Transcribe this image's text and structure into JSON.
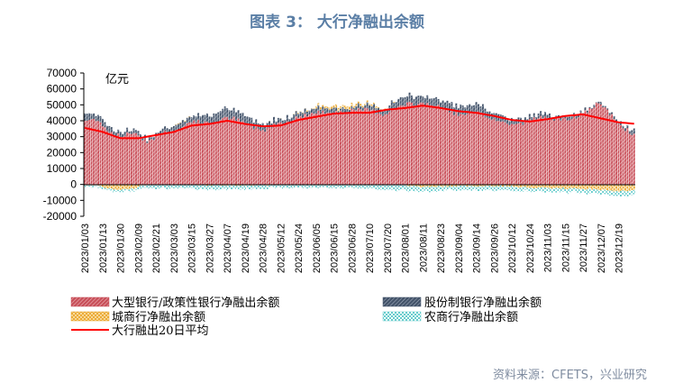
{
  "figure": {
    "title": "图表 3：  大行净融出余额",
    "source": "资料来源：CFETS，兴业研究"
  },
  "chart_data": {
    "type": "bar",
    "stacked": true,
    "unit_label": "亿元",
    "ylim": [
      -20000,
      70000
    ],
    "y_ticks": [
      70000,
      60000,
      50000,
      40000,
      30000,
      20000,
      10000,
      0,
      -10000,
      -20000
    ],
    "x_tick_labels": [
      "2023/01/03",
      "2023/01/13",
      "2023/01/30",
      "2023/02/09",
      "2023/02/21",
      "2023/03/03",
      "2023/03/15",
      "2023/03/27",
      "2023/04/07",
      "2023/04/19",
      "2023/04/28",
      "2023/05/12",
      "2023/05/24",
      "2023/06/05",
      "2023/06/15",
      "2023/06/28",
      "2023/07/10",
      "2023/07/20",
      "2023/08/01",
      "2023/08/11",
      "2023/08/23",
      "2023/09/04",
      "2023/09/14",
      "2023/09/26",
      "2023/10/12",
      "2023/10/24",
      "2023/11/03",
      "2023/11/15",
      "2023/11/27",
      "2023/12/07",
      "2023/12/19"
    ],
    "points_per_tick": 8,
    "grid": false,
    "legend_position": "bottom",
    "colors": {
      "big_banks": "#c8505a",
      "joint_stock": "#44546a",
      "city_commercial": "#f0b040",
      "rural_commercial": "#66cccc",
      "avg_line": "#ff0000"
    },
    "legend": [
      {
        "key": "big_banks",
        "label": "大型银行/政策性银行净融出余额"
      },
      {
        "key": "joint_stock",
        "label": "股份制银行净融出余额"
      },
      {
        "key": "city_commercial",
        "label": "城商行净融出余额"
      },
      {
        "key": "rural_commercial",
        "label": "农商行净融出余额"
      },
      {
        "key": "avg_line",
        "label": "大行融出20日平均"
      }
    ],
    "avg_anchors": [
      [
        0,
        35500
      ],
      [
        8,
        33000
      ],
      [
        16,
        29000
      ],
      [
        24,
        29000
      ],
      [
        32,
        31000
      ],
      [
        40,
        33000
      ],
      [
        48,
        37000
      ],
      [
        56,
        38000
      ],
      [
        64,
        40000
      ],
      [
        72,
        38000
      ],
      [
        80,
        36500
      ],
      [
        88,
        37000
      ],
      [
        96,
        40500
      ],
      [
        104,
        42500
      ],
      [
        112,
        44500
      ],
      [
        120,
        45000
      ],
      [
        128,
        45000
      ],
      [
        136,
        47000
      ],
      [
        144,
        48000
      ],
      [
        152,
        49500
      ],
      [
        160,
        48000
      ],
      [
        168,
        46000
      ],
      [
        176,
        45000
      ],
      [
        184,
        43000
      ],
      [
        192,
        40500
      ],
      [
        200,
        39500
      ],
      [
        208,
        41000
      ],
      [
        216,
        43000
      ],
      [
        224,
        44000
      ],
      [
        232,
        41500
      ],
      [
        240,
        39000
      ],
      [
        248,
        38000
      ],
      [
        256,
        37500
      ],
      [
        264,
        38000
      ],
      [
        272,
        43000
      ],
      [
        280,
        45000
      ],
      [
        288,
        45500
      ],
      [
        296,
        46000
      ],
      [
        304,
        48500
      ],
      [
        312,
        50000
      ],
      [
        320,
        51000
      ],
      [
        328,
        51500
      ],
      [
        336,
        51500
      ],
      [
        344,
        50000
      ]
    ],
    "big_anchors": [
      [
        0,
        40000
      ],
      [
        6,
        41000
      ],
      [
        10,
        34000
      ],
      [
        16,
        30000
      ],
      [
        22,
        33000
      ],
      [
        28,
        27000
      ],
      [
        36,
        33000
      ],
      [
        42,
        34000
      ],
      [
        48,
        40000
      ],
      [
        56,
        38000
      ],
      [
        62,
        41000
      ],
      [
        66,
        42000
      ],
      [
        72,
        38000
      ],
      [
        80,
        34000
      ],
      [
        86,
        38000
      ],
      [
        92,
        40000
      ],
      [
        100,
        44000
      ],
      [
        108,
        45500
      ],
      [
        118,
        46000
      ],
      [
        128,
        47000
      ],
      [
        134,
        44000
      ],
      [
        140,
        48000
      ],
      [
        146,
        50500
      ],
      [
        154,
        51000
      ],
      [
        162,
        47000
      ],
      [
        170,
        43000
      ],
      [
        176,
        45000
      ],
      [
        182,
        42000
      ],
      [
        190,
        38000
      ],
      [
        196,
        38000
      ],
      [
        202,
        41000
      ],
      [
        208,
        43000
      ],
      [
        214,
        40000
      ],
      [
        220,
        42000
      ],
      [
        226,
        46000
      ],
      [
        230,
        50000
      ],
      [
        234,
        48000
      ],
      [
        240,
        38000
      ],
      [
        246,
        32000
      ],
      [
        252,
        37000
      ],
      [
        258,
        43000
      ],
      [
        266,
        40000
      ],
      [
        272,
        38000
      ],
      [
        280,
        43000
      ],
      [
        288,
        47000
      ],
      [
        296,
        49000
      ],
      [
        304,
        47000
      ],
      [
        312,
        50000
      ],
      [
        320,
        51500
      ],
      [
        330,
        52000
      ],
      [
        338,
        53000
      ],
      [
        344,
        55000
      ]
    ],
    "joint_anchors": [
      [
        0,
        4500
      ],
      [
        10,
        3500
      ],
      [
        20,
        2000
      ],
      [
        30,
        2000
      ],
      [
        40,
        3000
      ],
      [
        50,
        4000
      ],
      [
        60,
        6000
      ],
      [
        70,
        5000
      ],
      [
        80,
        4000
      ],
      [
        90,
        3000
      ],
      [
        100,
        3000
      ],
      [
        110,
        2500
      ],
      [
        120,
        2000
      ],
      [
        130,
        3000
      ],
      [
        140,
        4500
      ],
      [
        150,
        5000
      ],
      [
        160,
        4500
      ],
      [
        170,
        5500
      ],
      [
        180,
        5000
      ],
      [
        190,
        3000
      ],
      [
        200,
        2500
      ],
      [
        210,
        2000
      ],
      [
        220,
        1500
      ],
      [
        230,
        1000
      ],
      [
        240,
        2000
      ],
      [
        250,
        2500
      ],
      [
        260,
        3000
      ],
      [
        270,
        2500
      ],
      [
        280,
        1500
      ],
      [
        290,
        1500
      ],
      [
        300,
        1500
      ],
      [
        310,
        2000
      ],
      [
        320,
        2000
      ],
      [
        330,
        2500
      ],
      [
        344,
        3000
      ]
    ],
    "city_anchors": [
      [
        0,
        0
      ],
      [
        8,
        -1500
      ],
      [
        14,
        -3500
      ],
      [
        20,
        -3000
      ],
      [
        28,
        0
      ],
      [
        40,
        0
      ],
      [
        60,
        -500
      ],
      [
        80,
        -500
      ],
      [
        100,
        500
      ],
      [
        110,
        1500
      ],
      [
        118,
        2000
      ],
      [
        126,
        1000
      ],
      [
        140,
        0
      ],
      [
        150,
        -1500
      ],
      [
        170,
        -1000
      ],
      [
        190,
        -1000
      ],
      [
        200,
        -2000
      ],
      [
        215,
        -2500
      ],
      [
        230,
        -3000
      ],
      [
        238,
        -4500
      ],
      [
        248,
        -3500
      ],
      [
        260,
        -2000
      ],
      [
        280,
        -1000
      ],
      [
        300,
        -1500
      ],
      [
        320,
        -2500
      ],
      [
        344,
        -2000
      ]
    ],
    "rural_anchors": [
      [
        0,
        -1000
      ],
      [
        20,
        -1500
      ],
      [
        40,
        -2500
      ],
      [
        60,
        -2500
      ],
      [
        80,
        -2000
      ],
      [
        100,
        -2000
      ],
      [
        120,
        -2000
      ],
      [
        140,
        -3500
      ],
      [
        160,
        -2500
      ],
      [
        180,
        -2500
      ],
      [
        200,
        -2500
      ],
      [
        220,
        -2500
      ],
      [
        240,
        -3000
      ],
      [
        260,
        -3000
      ],
      [
        280,
        -3000
      ],
      [
        300,
        -2000
      ],
      [
        320,
        -2500
      ],
      [
        344,
        -2500
      ]
    ]
  }
}
